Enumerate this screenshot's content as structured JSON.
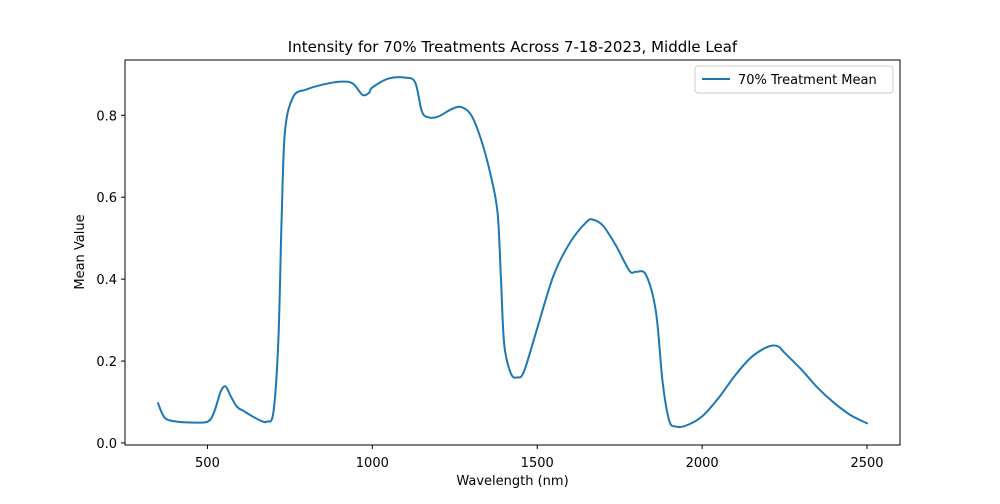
{
  "chart_data": {
    "type": "line",
    "title": "Intensity for 70% Treatments Across 7-18-2023, Middle Leaf",
    "xlabel": "Wavelength (nm)",
    "ylabel": "Mean Value",
    "xlim": [
      250,
      2600
    ],
    "ylim": [
      -0.005,
      0.935
    ],
    "xticks": [
      500,
      1000,
      1500,
      2000,
      2500
    ],
    "xtick_labels": [
      "500",
      "1000",
      "1500",
      "2000",
      "2500"
    ],
    "yticks": [
      0.0,
      0.2,
      0.4,
      0.6,
      0.8
    ],
    "ytick_labels": [
      "0.0",
      "0.2",
      "0.4",
      "0.6",
      "0.8"
    ],
    "grid": false,
    "legend_position": "top-right",
    "series": [
      {
        "name": "70% Treatment Mean",
        "color": "#1f77b4",
        "points": [
          [
            350,
            0.097
          ],
          [
            370,
            0.062
          ],
          [
            400,
            0.053
          ],
          [
            450,
            0.05
          ],
          [
            500,
            0.052
          ],
          [
            520,
            0.075
          ],
          [
            540,
            0.125
          ],
          [
            555,
            0.138
          ],
          [
            570,
            0.115
          ],
          [
            590,
            0.088
          ],
          [
            610,
            0.078
          ],
          [
            630,
            0.068
          ],
          [
            660,
            0.055
          ],
          [
            680,
            0.052
          ],
          [
            700,
            0.075
          ],
          [
            715,
            0.25
          ],
          [
            725,
            0.55
          ],
          [
            735,
            0.76
          ],
          [
            760,
            0.845
          ],
          [
            800,
            0.863
          ],
          [
            850,
            0.875
          ],
          [
            900,
            0.882
          ],
          [
            940,
            0.878
          ],
          [
            970,
            0.85
          ],
          [
            990,
            0.855
          ],
          [
            1000,
            0.868
          ],
          [
            1050,
            0.89
          ],
          [
            1100,
            0.892
          ],
          [
            1130,
            0.88
          ],
          [
            1150,
            0.81
          ],
          [
            1170,
            0.795
          ],
          [
            1200,
            0.797
          ],
          [
            1240,
            0.815
          ],
          [
            1270,
            0.82
          ],
          [
            1300,
            0.8
          ],
          [
            1330,
            0.74
          ],
          [
            1360,
            0.65
          ],
          [
            1380,
            0.56
          ],
          [
            1390,
            0.4
          ],
          [
            1400,
            0.24
          ],
          [
            1420,
            0.17
          ],
          [
            1440,
            0.16
          ],
          [
            1460,
            0.175
          ],
          [
            1500,
            0.28
          ],
          [
            1550,
            0.41
          ],
          [
            1600,
            0.49
          ],
          [
            1650,
            0.54
          ],
          [
            1670,
            0.545
          ],
          [
            1700,
            0.53
          ],
          [
            1740,
            0.48
          ],
          [
            1780,
            0.42
          ],
          [
            1800,
            0.418
          ],
          [
            1830,
            0.41
          ],
          [
            1860,
            0.32
          ],
          [
            1880,
            0.15
          ],
          [
            1900,
            0.055
          ],
          [
            1920,
            0.04
          ],
          [
            1950,
            0.042
          ],
          [
            2000,
            0.065
          ],
          [
            2050,
            0.11
          ],
          [
            2100,
            0.165
          ],
          [
            2150,
            0.21
          ],
          [
            2200,
            0.235
          ],
          [
            2230,
            0.236
          ],
          [
            2250,
            0.22
          ],
          [
            2300,
            0.18
          ],
          [
            2350,
            0.135
          ],
          [
            2400,
            0.098
          ],
          [
            2450,
            0.068
          ],
          [
            2500,
            0.048
          ]
        ]
      }
    ]
  }
}
